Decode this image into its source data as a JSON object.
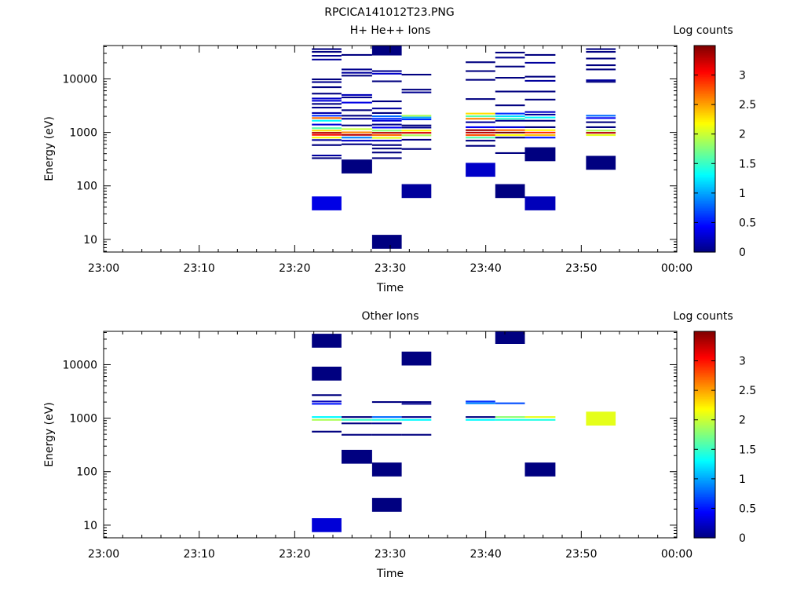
{
  "figure_title": "RPCICA141012T23.PNG",
  "chart_data": [
    {
      "type": "heatmap",
      "title": "H+ He++ Ions",
      "xlabel": "Time",
      "ylabel": "Energy (eV)",
      "x_ticks": [
        "23:00",
        "23:10",
        "23:20",
        "23:30",
        "23:40",
        "23:50",
        "00:00"
      ],
      "xlim": [
        "23:00",
        "00:00"
      ],
      "y_scale": "log",
      "ylim": [
        5.8,
        42000
      ],
      "y_ticks": [
        10,
        100,
        1000,
        10000
      ],
      "y_tick_labels": [
        "10",
        "100",
        "1000",
        "10000"
      ],
      "colorbar": {
        "label": "Log counts",
        "range": [
          0,
          3.5
        ],
        "ticks": [
          0,
          0.5,
          1,
          1.5,
          2,
          2.5,
          3
        ],
        "tick_labels": [
          "0",
          "0.5",
          "1",
          "1.5",
          "2",
          "2.5",
          "3"
        ],
        "colormap": "jet"
      },
      "columns": [
        {
          "t0": "23:21.8",
          "t1": "23:24.9",
          "cells": [
            {
              "e": 36000,
              "v": 0.0
            },
            {
              "e": 32000,
              "v": 0.0
            },
            {
              "e": 27000,
              "v": 0.05
            },
            {
              "e": 23000,
              "v": 0.1
            },
            {
              "e": 9800,
              "v": 0.0
            },
            {
              "e": 8700,
              "v": 0.05
            },
            {
              "e": 7000,
              "v": 0.0
            },
            {
              "e": 5300,
              "v": 0.0
            },
            {
              "e": 4300,
              "v": 0.25
            },
            {
              "e": 3900,
              "v": 0.3
            },
            {
              "e": 3400,
              "v": 0.0
            },
            {
              "e": 2900,
              "v": 0.05
            },
            {
              "e": 2300,
              "v": 0.15
            },
            {
              "e": 2050,
              "v": 0.6
            },
            {
              "e": 1850,
              "v": 2.7
            },
            {
              "e": 1650,
              "v": 1.3
            },
            {
              "e": 1400,
              "v": 0.3
            },
            {
              "e": 1200,
              "v": 1.6
            },
            {
              "e": 1080,
              "v": 2.3
            },
            {
              "e": 980,
              "v": 3.3
            },
            {
              "e": 900,
              "v": 3.0
            },
            {
              "e": 800,
              "v": 2.2
            },
            {
              "e": 720,
              "v": 0.1
            },
            {
              "e": 580,
              "v": 0.0
            },
            {
              "e": 370,
              "v": 0.1
            },
            {
              "e": 330,
              "v": 0.0
            },
            {
              "e": 47,
              "v": 0.35
            }
          ]
        },
        {
          "t0": "23:24.9",
          "t1": "23:28.1",
          "cells": [
            {
              "e": 28000,
              "v": 0.0
            },
            {
              "e": 15000,
              "v": 0.05
            },
            {
              "e": 13000,
              "v": 0.1
            },
            {
              "e": 11500,
              "v": 0.0
            },
            {
              "e": 5000,
              "v": 0.2
            },
            {
              "e": 4500,
              "v": 0.05
            },
            {
              "e": 3600,
              "v": 0.35
            },
            {
              "e": 2600,
              "v": 0.0
            },
            {
              "e": 2050,
              "v": 0.0
            },
            {
              "e": 1800,
              "v": 0.1
            },
            {
              "e": 1350,
              "v": 0.0
            },
            {
              "e": 1150,
              "v": 2.0
            },
            {
              "e": 1000,
              "v": 2.6
            },
            {
              "e": 900,
              "v": 3.3
            },
            {
              "e": 800,
              "v": 0.9
            },
            {
              "e": 700,
              "v": 0.25
            },
            {
              "e": 600,
              "v": 0.0
            },
            {
              "e": 230,
              "v": 0.0
            }
          ]
        },
        {
          "t0": "23:28.1",
          "t1": "23:31.2",
          "cells": [
            {
              "e": 37000,
              "v": 0.0
            },
            {
              "e": 14000,
              "v": 0.05
            },
            {
              "e": 12500,
              "v": 0.25
            },
            {
              "e": 9000,
              "v": 0.0
            },
            {
              "e": 3800,
              "v": 0.0
            },
            {
              "e": 2800,
              "v": 0.1
            },
            {
              "e": 2300,
              "v": 0.0
            },
            {
              "e": 2000,
              "v": 0.8
            },
            {
              "e": 1800,
              "v": 0.6
            },
            {
              "e": 1650,
              "v": 0.3
            },
            {
              "e": 1400,
              "v": 0.05
            },
            {
              "e": 1230,
              "v": 0.4
            },
            {
              "e": 1080,
              "v": 1.8
            },
            {
              "e": 980,
              "v": 3.3
            },
            {
              "e": 890,
              "v": 2.7
            },
            {
              "e": 790,
              "v": 2.1
            },
            {
              "e": 700,
              "v": 0.2
            },
            {
              "e": 580,
              "v": 0.0
            },
            {
              "e": 500,
              "v": 0.0
            },
            {
              "e": 420,
              "v": 0.0
            },
            {
              "e": 330,
              "v": 0.0
            },
            {
              "e": 9,
              "v": 0.0
            }
          ]
        },
        {
          "t0": "23:31.2",
          "t1": "23:34.3",
          "cells": [
            {
              "e": 12000,
              "v": 0.0
            },
            {
              "e": 6300,
              "v": 0.0
            },
            {
              "e": 5600,
              "v": 0.05
            },
            {
              "e": 2050,
              "v": 1.9
            },
            {
              "e": 1900,
              "v": 1.0
            },
            {
              "e": 1750,
              "v": 0.6
            },
            {
              "e": 1350,
              "v": 0.0
            },
            {
              "e": 1230,
              "v": 0.05
            },
            {
              "e": 1080,
              "v": 2.2
            },
            {
              "e": 980,
              "v": 3.2
            },
            {
              "e": 880,
              "v": 1.9
            },
            {
              "e": 730,
              "v": 0.0
            },
            {
              "e": 490,
              "v": 0.0
            },
            {
              "e": 80,
              "v": 0.1
            }
          ]
        },
        {
          "t0": "23:37.9",
          "t1": "23:41.0",
          "cells": [
            {
              "e": 20500,
              "v": 0.0
            },
            {
              "e": 14000,
              "v": 0.0
            },
            {
              "e": 9600,
              "v": 0.0
            },
            {
              "e": 4200,
              "v": 0.0
            },
            {
              "e": 2250,
              "v": 2.3
            },
            {
              "e": 2000,
              "v": 1.6
            },
            {
              "e": 1800,
              "v": 2.6
            },
            {
              "e": 1550,
              "v": 0.1
            },
            {
              "e": 1250,
              "v": 0.4
            },
            {
              "e": 1100,
              "v": 3.4
            },
            {
              "e": 990,
              "v": 3.3
            },
            {
              "e": 890,
              "v": 2.8
            },
            {
              "e": 800,
              "v": 1.6
            },
            {
              "e": 700,
              "v": 0.0
            },
            {
              "e": 560,
              "v": 0.0
            },
            {
              "e": 200,
              "v": 0.25
            }
          ]
        },
        {
          "t0": "23:41.0",
          "t1": "23:44.1",
          "cells": [
            {
              "e": 31000,
              "v": 0.0
            },
            {
              "e": 25000,
              "v": 0.05
            },
            {
              "e": 17000,
              "v": 0.0
            },
            {
              "e": 10500,
              "v": 0.0
            },
            {
              "e": 5800,
              "v": 0.0
            },
            {
              "e": 3200,
              "v": 0.0
            },
            {
              "e": 2250,
              "v": 0.6
            },
            {
              "e": 2000,
              "v": 1.2
            },
            {
              "e": 1800,
              "v": 1.5
            },
            {
              "e": 1650,
              "v": 0.05
            },
            {
              "e": 1250,
              "v": 0.3
            },
            {
              "e": 1100,
              "v": 2.7
            },
            {
              "e": 990,
              "v": 3.5
            },
            {
              "e": 890,
              "v": 2.2
            },
            {
              "e": 800,
              "v": 0.0
            },
            {
              "e": 410,
              "v": 0.0
            },
            {
              "e": 80,
              "v": 0.0
            }
          ]
        },
        {
          "t0": "23:44.1",
          "t1": "23:47.3",
          "cells": [
            {
              "e": 28000,
              "v": 0.0
            },
            {
              "e": 20000,
              "v": 0.1
            },
            {
              "e": 11000,
              "v": 0.0
            },
            {
              "e": 9200,
              "v": 0.1
            },
            {
              "e": 5800,
              "v": 0.0
            },
            {
              "e": 4100,
              "v": 0.0
            },
            {
              "e": 2400,
              "v": 0.25
            },
            {
              "e": 2150,
              "v": 0.1
            },
            {
              "e": 1900,
              "v": 1.3
            },
            {
              "e": 1650,
              "v": 0.0
            },
            {
              "e": 1250,
              "v": 0.0
            },
            {
              "e": 1100,
              "v": 2.2
            },
            {
              "e": 990,
              "v": 2.9
            },
            {
              "e": 890,
              "v": 2.4
            },
            {
              "e": 800,
              "v": 0.5
            },
            {
              "e": 390,
              "v": 0.0
            },
            {
              "e": 47,
              "v": 0.2
            }
          ]
        },
        {
          "t0": "23:50.5",
          "t1": "23:53.6",
          "cells": [
            {
              "e": 36000,
              "v": 0.0
            },
            {
              "e": 32000,
              "v": 0.0
            },
            {
              "e": 24000,
              "v": 0.0
            },
            {
              "e": 18000,
              "v": 0.0
            },
            {
              "e": 15000,
              "v": 0.0
            },
            {
              "e": 9400,
              "v": 0.1
            },
            {
              "e": 8800,
              "v": 0.0
            },
            {
              "e": 2050,
              "v": 0.8
            },
            {
              "e": 1850,
              "v": 0.4
            },
            {
              "e": 1550,
              "v": 0.0
            },
            {
              "e": 1250,
              "v": 0.0
            },
            {
              "e": 1080,
              "v": 1.9
            },
            {
              "e": 980,
              "v": 3.3
            },
            {
              "e": 890,
              "v": 2.1
            },
            {
              "e": 270,
              "v": 0.0
            }
          ]
        }
      ]
    },
    {
      "type": "heatmap",
      "title": "Other Ions",
      "xlabel": "Time",
      "ylabel": "Energy (eV)",
      "x_ticks": [
        "23:00",
        "23:10",
        "23:20",
        "23:30",
        "23:40",
        "23:50",
        "00:00"
      ],
      "xlim": [
        "23:00",
        "00:00"
      ],
      "y_scale": "log",
      "ylim": [
        5.8,
        42000
      ],
      "y_ticks": [
        10,
        100,
        1000,
        10000
      ],
      "y_tick_labels": [
        "10",
        "100",
        "1000",
        "10000"
      ],
      "colorbar": {
        "label": "Log counts",
        "range": [
          0,
          3.5
        ],
        "ticks": [
          0,
          0.5,
          1,
          1.5,
          2,
          2.5,
          3
        ],
        "tick_labels": [
          "0",
          "0.5",
          "1",
          "1.5",
          "2",
          "2.5",
          "3"
        ],
        "colormap": "jet"
      },
      "columns": [
        {
          "t0": "23:21.8",
          "t1": "23:24.9",
          "cells": [
            {
              "e": 28000,
              "v": 0.0
            },
            {
              "e": 6800,
              "v": 0.0
            },
            {
              "e": 2700,
              "v": 0.0
            },
            {
              "e": 2050,
              "v": 0.2
            },
            {
              "e": 1850,
              "v": 0.5
            },
            {
              "e": 1050,
              "v": 1.3
            },
            {
              "e": 930,
              "v": 1.9
            },
            {
              "e": 560,
              "v": 0.0
            },
            {
              "e": 10,
              "v": 0.3
            }
          ]
        },
        {
          "t0": "23:24.9",
          "t1": "23:28.1",
          "cells": [
            {
              "e": 1050,
              "v": 0.0
            },
            {
              "e": 930,
              "v": 1.5
            },
            {
              "e": 800,
              "v": 0.0
            },
            {
              "e": 490,
              "v": 0.0
            },
            {
              "e": 190,
              "v": 0.0
            }
          ]
        },
        {
          "t0": "23:28.1",
          "t1": "23:31.2",
          "cells": [
            {
              "e": 2000,
              "v": 0.0
            },
            {
              "e": 1050,
              "v": 0.8
            },
            {
              "e": 930,
              "v": 1.4
            },
            {
              "e": 800,
              "v": 0.05
            },
            {
              "e": 490,
              "v": 0.0
            },
            {
              "e": 110,
              "v": 0.0
            },
            {
              "e": 24,
              "v": 0.0
            }
          ]
        },
        {
          "t0": "23:31.2",
          "t1": "23:34.3",
          "cells": [
            {
              "e": 13000,
              "v": 0.0
            },
            {
              "e": 2000,
              "v": 0.0
            },
            {
              "e": 1850,
              "v": 0.05
            },
            {
              "e": 1050,
              "v": 0.05
            },
            {
              "e": 930,
              "v": 1.3
            },
            {
              "e": 490,
              "v": 0.0
            }
          ]
        },
        {
          "t0": "23:37.9",
          "t1": "23:41.0",
          "cells": [
            {
              "e": 2050,
              "v": 0.6
            },
            {
              "e": 1900,
              "v": 0.9
            },
            {
              "e": 1050,
              "v": 0.0
            },
            {
              "e": 930,
              "v": 1.3
            }
          ]
        },
        {
          "t0": "23:41.0",
          "t1": "23:44.1",
          "cells": [
            {
              "e": 33000,
              "v": 0.0
            },
            {
              "e": 1900,
              "v": 0.7
            },
            {
              "e": 1050,
              "v": 1.8
            },
            {
              "e": 930,
              "v": 1.4
            }
          ]
        },
        {
          "t0": "23:44.1",
          "t1": "23:47.3",
          "cells": [
            {
              "e": 1050,
              "v": 2.1
            },
            {
              "e": 930,
              "v": 1.4
            },
            {
              "e": 110,
              "v": 0.0
            }
          ]
        },
        {
          "t0": "23:50.5",
          "t1": "23:53.6",
          "cells": [
            {
              "e": 980,
              "v": 2.1
            }
          ]
        }
      ]
    }
  ]
}
